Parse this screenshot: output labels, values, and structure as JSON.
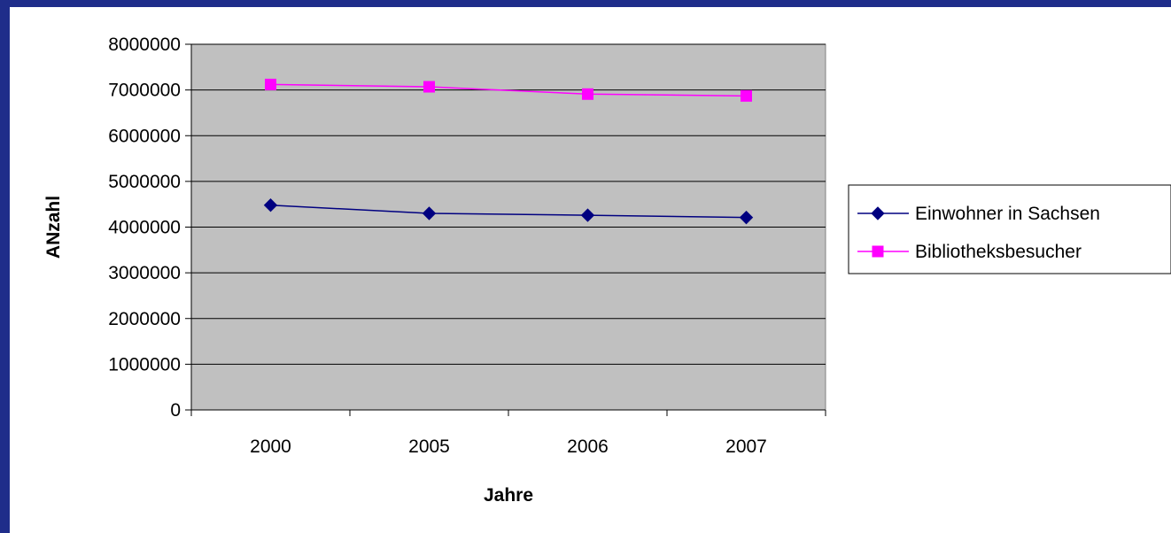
{
  "chart_data": {
    "type": "line",
    "title": "",
    "xlabel": "Jahre",
    "ylabel": "ANzahl",
    "categories": [
      "2000",
      "2005",
      "2006",
      "2007"
    ],
    "ylim": [
      0,
      8000000
    ],
    "yticks": [
      "0",
      "1000000",
      "2000000",
      "3000000",
      "4000000",
      "5000000",
      "6000000",
      "7000000",
      "8000000"
    ],
    "grid": true,
    "legend_position": "right",
    "series": [
      {
        "name": "Einwohner in Sachsen",
        "values": [
          4480000,
          4300000,
          4260000,
          4210000
        ],
        "color": "#000080",
        "marker": "diamond"
      },
      {
        "name": "Bibliotheksbesucher",
        "values": [
          7120000,
          7070000,
          6910000,
          6870000
        ],
        "color": "#ff00ff",
        "marker": "square"
      }
    ]
  },
  "colors": {
    "background_border": "#1f2d8a",
    "plot_area": "#c0c0c0"
  }
}
